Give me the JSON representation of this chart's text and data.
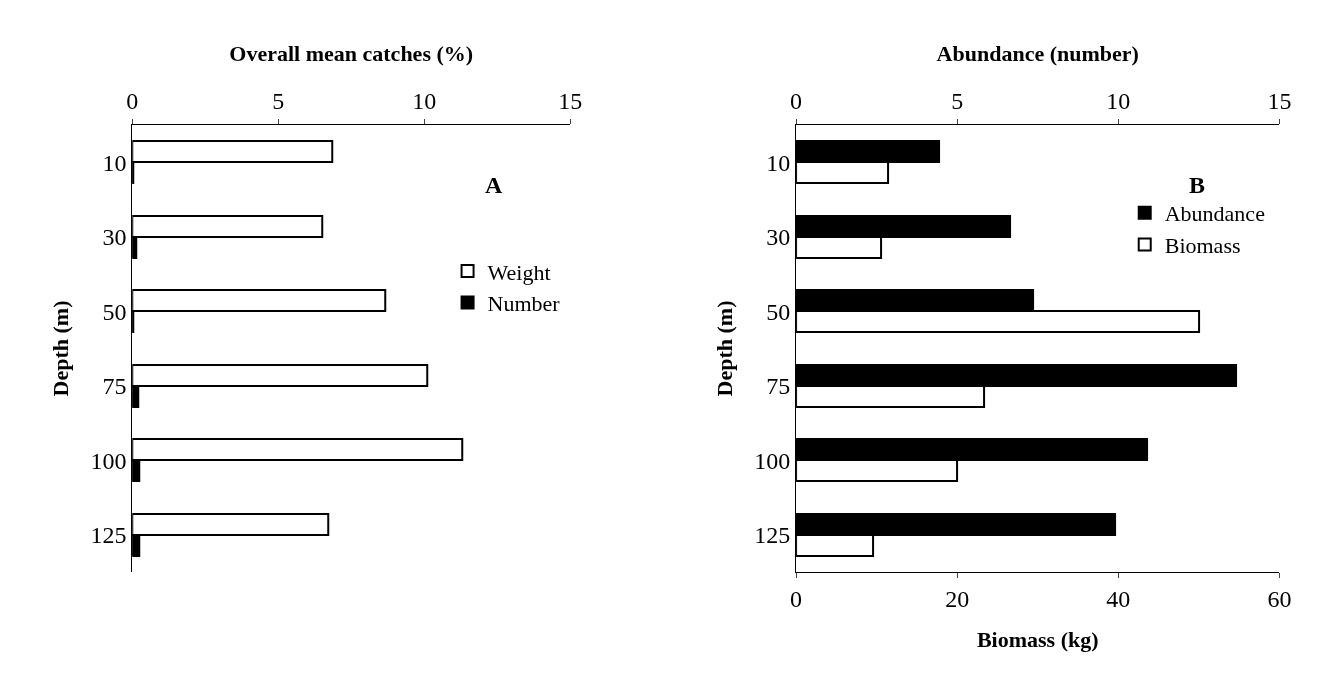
{
  "chart_data": [
    {
      "type": "bar",
      "orientation": "horizontal",
      "categories": [
        "10",
        "30",
        "50",
        "75",
        "100",
        "125"
      ],
      "series": [
        {
          "name": "Weight",
          "color": "#ffffff",
          "values": [
            6.85,
            6.5,
            8.65,
            10.1,
            11.3,
            6.7
          ]
        },
        {
          "name": "Number",
          "color": "#000000",
          "values": [
            0.05,
            0.15,
            0.05,
            0.2,
            0.25,
            0.25
          ]
        }
      ],
      "xlim": [
        0,
        15
      ],
      "xticks": [
        0,
        5,
        10,
        15
      ],
      "xlabel": "Overall mean catches (%)",
      "ylabel": "Depth (m)",
      "annotations": [
        "A"
      ],
      "legend": "right"
    },
    {
      "type": "bar",
      "orientation": "horizontal",
      "categories": [
        "10",
        "30",
        "50",
        "75",
        "100",
        "125"
      ],
      "series": [
        {
          "name": "Abundance",
          "color": "#000000",
          "axis": "x2",
          "values": [
            4.45,
            6.65,
            7.35,
            13.65,
            10.9,
            9.9
          ]
        },
        {
          "name": "Biomass",
          "color": "#ffffff",
          "values": [
            11.4,
            10.5,
            50,
            23.3,
            20,
            9.5
          ]
        }
      ],
      "xlim": [
        0,
        60
      ],
      "xticks": [
        0,
        20,
        40,
        60
      ],
      "xlabel": "Biomass (kg)",
      "x2lim": [
        0,
        15
      ],
      "x2ticks": [
        0,
        5,
        10,
        15
      ],
      "x2label": "Abundance (number)",
      "ylabel": "Depth (m)",
      "annotations": [
        "B"
      ],
      "legend": "top right"
    }
  ]
}
